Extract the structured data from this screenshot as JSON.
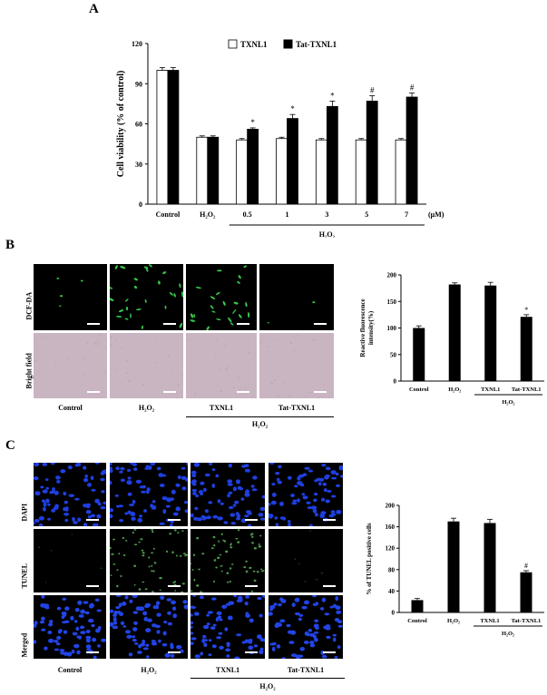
{
  "panels": {
    "A": "A",
    "B": "B",
    "C": "C"
  },
  "chart_data": [
    {
      "type": "bar",
      "ylabel": "Cell viability (% of control)",
      "categories": [
        "Control",
        "H2O2",
        "0.5",
        "1",
        "3",
        "5",
        "7"
      ],
      "category_display": [
        "Control",
        "H₂O₂",
        "0.5",
        "1",
        "3",
        "5",
        "7"
      ],
      "unit_label": "(μM)",
      "group_label": "H₂O₂",
      "ylim": [
        0,
        120
      ],
      "yticks": [
        "0",
        "30",
        "60",
        "90",
        "120"
      ],
      "legend_position": "top",
      "series": [
        {
          "name": "TXNL1",
          "color": "#ffffff",
          "values": [
            100,
            50,
            48,
            49,
            48,
            48,
            48
          ],
          "errors": [
            2,
            1,
            1,
            1,
            1,
            1,
            1
          ],
          "marks": [
            "",
            "",
            "",
            "",
            "",
            "",
            ""
          ]
        },
        {
          "name": "Tat-TXNL1",
          "color": "#000000",
          "values": [
            100,
            50,
            56,
            64,
            73,
            77,
            80
          ],
          "errors": [
            2,
            1,
            1,
            3,
            4,
            4,
            3
          ],
          "marks": [
            "",
            "",
            "*",
            "*",
            "*",
            "#",
            "#"
          ]
        }
      ]
    },
    {
      "type": "bar",
      "ylabel_lines": [
        "Reactive fluorescence",
        "intensity(%)"
      ],
      "categories": [
        "Control",
        "H2O2",
        "TXNL1",
        "Tat-TXNL1"
      ],
      "category_display": [
        "Control",
        "H₂O₂",
        "TXNL1",
        "Tat-TXNL1"
      ],
      "group_label": "H₂O₂",
      "ylim": [
        0,
        200
      ],
      "yticks": [
        "0",
        "50",
        "100",
        "150",
        "200"
      ],
      "values": [
        100,
        182,
        180,
        121
      ],
      "errors": [
        4,
        3,
        6,
        4
      ],
      "marks": [
        "",
        "",
        "",
        "*"
      ]
    },
    {
      "type": "bar",
      "ylabel": "% of TUNEL positive cells",
      "categories": [
        "Control",
        "H2O2",
        "TXNL1",
        "Tat-TXNL1"
      ],
      "category_display": [
        "Control",
        "H₂O₂",
        "TXNL1",
        "Tat-TXNL1"
      ],
      "group_label": "H₂O₂",
      "ylim": [
        0,
        200
      ],
      "yticks": [
        "0",
        "40",
        "80",
        "120",
        "160",
        "200"
      ],
      "values": [
        23,
        170,
        167,
        75
      ],
      "errors": [
        3,
        6,
        7,
        3
      ],
      "marks": [
        "",
        "",
        "",
        "#"
      ]
    }
  ],
  "micrographs_B": {
    "rows": [
      "DCF-DA",
      "Bright field"
    ],
    "cols": [
      "Control",
      "H₂O₂",
      "TXNL1",
      "Tat-TXNL1"
    ],
    "group_label": "H₂O₂"
  },
  "micrographs_C": {
    "rows": [
      "DAPI",
      "TUNEL",
      "Merged"
    ],
    "cols": [
      "Control",
      "H₂O₂",
      "TXNL1",
      "Tat-TXNL1"
    ],
    "group_label": "H₂O₂"
  }
}
